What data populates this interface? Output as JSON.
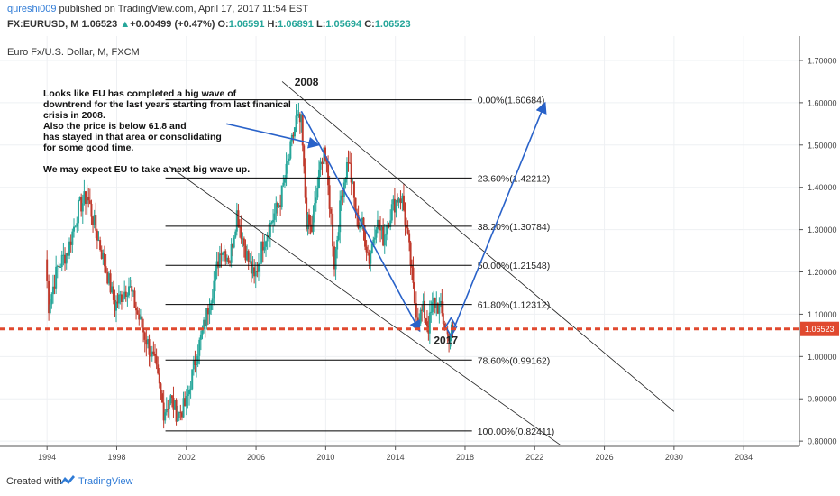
{
  "header": {
    "author": "qureshi009",
    "published_text": " published on TradingView.com, April 17, 2017 11:54 EST",
    "symbol": "FX:EURUSD, M",
    "last": "1.06523",
    "up_arrow": "▲",
    "change": "+0.00499 (+0.47%)",
    "o_label": "O:",
    "o_value": "1.06591",
    "h_label": "H:",
    "h_value": "1.06891",
    "l_label": "L:",
    "l_value": "1.05694",
    "c_label": "C:",
    "c_value": "1.06523"
  },
  "footer": {
    "created_with": "Created with",
    "brand": "TradingView"
  },
  "colors": {
    "up_candle": "#26a69a",
    "down_candle": "#c0392b",
    "drawing_blue": "#2962c9",
    "price_line": "#e0492f",
    "fib_line": "#000000"
  },
  "chart_data": {
    "type": "candlestick",
    "title": "Euro Fx/U.S. Dollar, M, FXCM",
    "x_ticks": [
      "1994",
      "1998",
      "2002",
      "2006",
      "2010",
      "2014",
      "2018",
      "2022",
      "2026",
      "2030",
      "2034"
    ],
    "y_ticks": [
      "1.70000",
      "1.60000",
      "1.50000",
      "1.40000",
      "1.30000",
      "1.20000",
      "1.10000",
      "1.00000",
      "0.90000",
      "0.80000"
    ],
    "xlim": [
      1991.3,
      2037.2
    ],
    "ylim": [
      0.7875,
      1.7575
    ],
    "current_price": 1.06523,
    "current_price_label": "1.06523",
    "price_path": [
      [
        1993.9,
        1.23
      ],
      [
        1994.1,
        1.12
      ],
      [
        1994.6,
        1.21
      ],
      [
        1995.2,
        1.25
      ],
      [
        1995.8,
        1.35
      ],
      [
        1996.3,
        1.38
      ],
      [
        1996.8,
        1.3
      ],
      [
        1997.3,
        1.22
      ],
      [
        1997.9,
        1.12
      ],
      [
        1998.2,
        1.14
      ],
      [
        1998.7,
        1.17
      ],
      [
        1999.2,
        1.1
      ],
      [
        1999.7,
        1.04
      ],
      [
        2000.2,
        0.98
      ],
      [
        2000.7,
        0.87
      ],
      [
        2001.1,
        0.9
      ],
      [
        2001.5,
        0.86
      ],
      [
        2002.0,
        0.89
      ],
      [
        2002.5,
        0.99
      ],
      [
        2003.0,
        1.07
      ],
      [
        2003.5,
        1.16
      ],
      [
        2004.0,
        1.26
      ],
      [
        2004.5,
        1.23
      ],
      [
        2004.9,
        1.34
      ],
      [
        2005.4,
        1.25
      ],
      [
        2005.9,
        1.18
      ],
      [
        2006.4,
        1.27
      ],
      [
        2006.9,
        1.32
      ],
      [
        2007.4,
        1.37
      ],
      [
        2007.9,
        1.47
      ],
      [
        2008.3,
        1.56
      ],
      [
        2008.6,
        1.55
      ],
      [
        2008.9,
        1.32
      ],
      [
        2009.2,
        1.3
      ],
      [
        2009.7,
        1.45
      ],
      [
        2009.9,
        1.5
      ],
      [
        2010.3,
        1.33
      ],
      [
        2010.5,
        1.22
      ],
      [
        2010.9,
        1.38
      ],
      [
        2011.3,
        1.47
      ],
      [
        2011.8,
        1.32
      ],
      [
        2012.1,
        1.31
      ],
      [
        2012.5,
        1.23
      ],
      [
        2012.9,
        1.32
      ],
      [
        2013.3,
        1.28
      ],
      [
        2013.8,
        1.35
      ],
      [
        2014.2,
        1.38
      ],
      [
        2014.4,
        1.37
      ],
      [
        2014.8,
        1.25
      ],
      [
        2015.1,
        1.13
      ],
      [
        2015.3,
        1.09
      ],
      [
        2015.6,
        1.11
      ],
      [
        2015.9,
        1.07
      ],
      [
        2016.2,
        1.13
      ],
      [
        2016.6,
        1.11
      ],
      [
        2016.9,
        1.06
      ],
      [
        2017.0,
        1.05
      ],
      [
        2017.3,
        1.065
      ]
    ],
    "fib_levels": [
      {
        "label": "0.00%(1.60684)",
        "value": 1.60684
      },
      {
        "label": "23.60%(1.42212)",
        "value": 1.42212
      },
      {
        "label": "38.20%(1.30784)",
        "value": 1.30784
      },
      {
        "label": "50.00%(1.21548)",
        "value": 1.21548
      },
      {
        "label": "61.80%(1.12312)",
        "value": 1.12312
      },
      {
        "label": "78.60%(0.99162)",
        "value": 0.99162
      },
      {
        "label": "100.00%(0.82411)",
        "value": 0.82411
      }
    ],
    "fib_x_range": [
      2000.8,
      2018.4
    ],
    "channel_lines": [
      {
        "from": [
          2007.5,
          1.65
        ],
        "to": [
          2030.0,
          0.87
        ]
      },
      {
        "from": [
          2001.0,
          1.45
        ],
        "to": [
          2023.5,
          0.79
        ]
      }
    ],
    "arrows": [
      {
        "from": [
          2004.3,
          1.55
        ],
        "to": [
          2009.6,
          1.5
        ]
      },
      {
        "from": [
          2008.6,
          1.58
        ],
        "to": [
          2015.4,
          1.06
        ]
      },
      {
        "from": [
          2017.3,
          1.06
        ],
        "to": [
          2022.6,
          1.6
        ]
      }
    ],
    "labels": [
      {
        "text": "2008",
        "x": 2008.9,
        "y": 1.64
      },
      {
        "text": "2017",
        "x": 2016.9,
        "y": 1.03
      }
    ],
    "annotation": [
      "Looks like EU has completed a big wave of",
      "downtrend for the last years starting from last finanical",
      "crisis in 2008.",
      "Also the price is below 61.8 and",
      " has stayed in that area or consolidating",
      "for some good time.",
      "",
      "We may expect EU to take a next big wave up."
    ]
  }
}
